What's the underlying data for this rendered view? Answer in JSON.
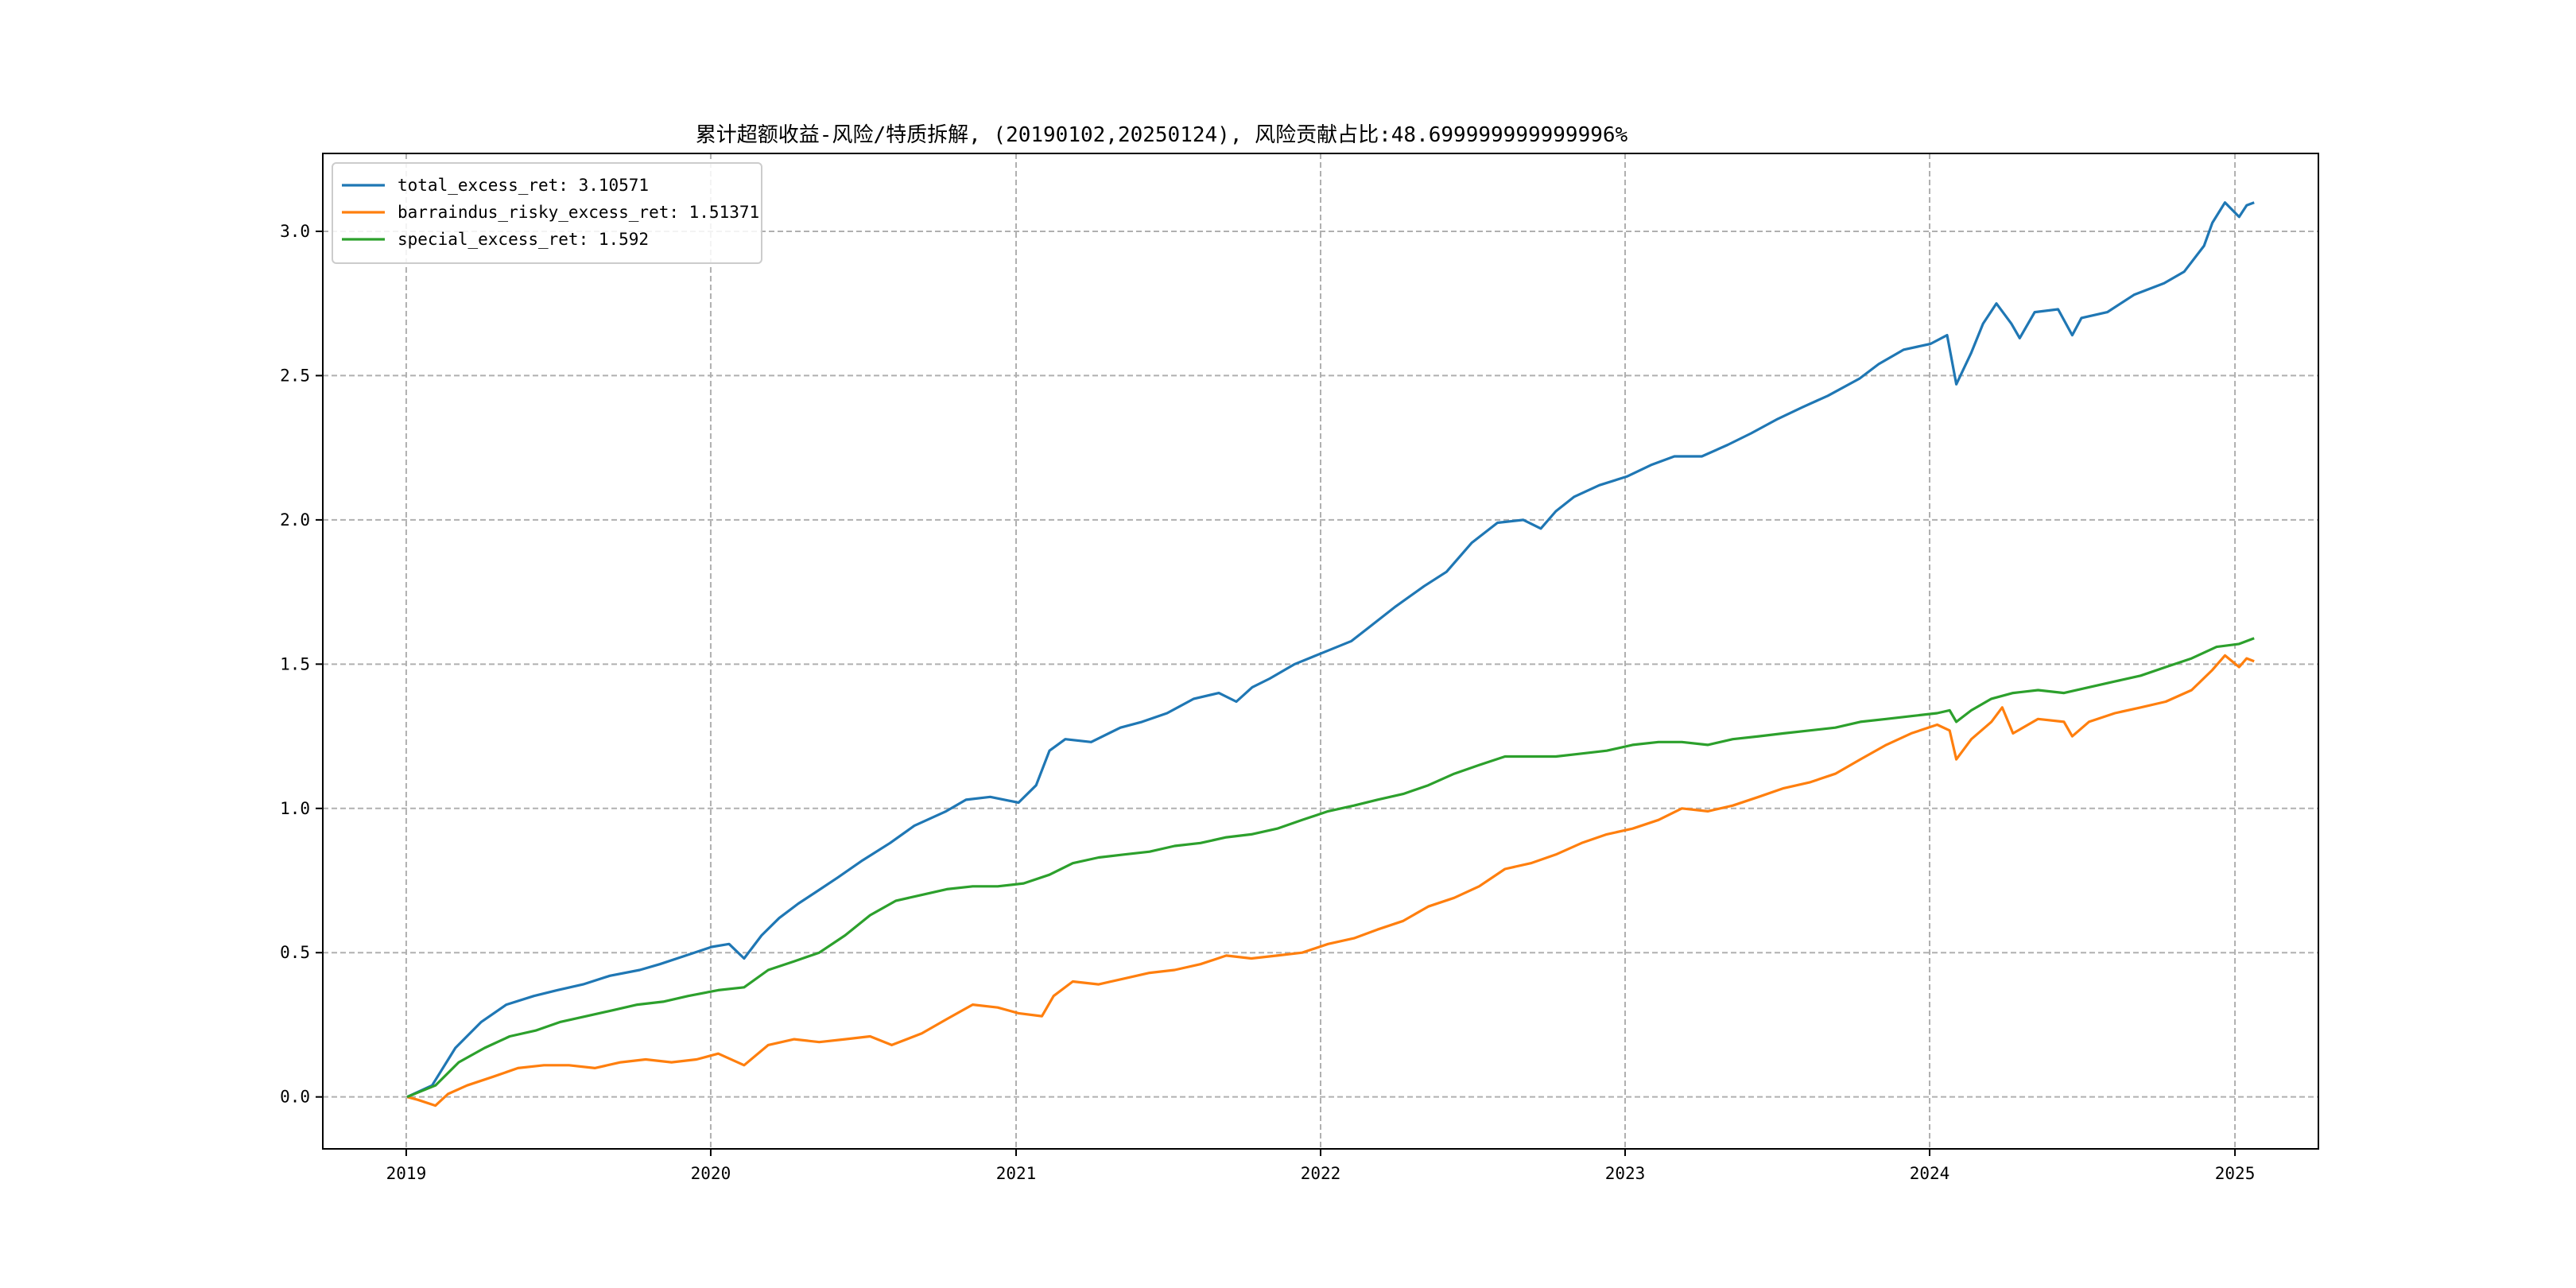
{
  "chart_data": {
    "type": "line",
    "title": "累计超额收益-风险/特质拆解, (20190102,20250124), 风险贡献占比:48.699999999999996%",
    "xlabel": "",
    "ylabel": "",
    "x_ticks": [
      "2019",
      "2020",
      "2021",
      "2022",
      "2023",
      "2024",
      "2025"
    ],
    "y_ticks": [
      "0.0",
      "0.5",
      "1.0",
      "1.5",
      "2.0",
      "2.5",
      "3.0"
    ],
    "xlim": [
      "2018-09-23",
      "2025-04-11"
    ],
    "ylim": [
      -0.18,
      3.27
    ],
    "grid": true,
    "legend_position": "top-left",
    "series": [
      {
        "name": "total_excess_ret",
        "legend": "total_excess_ret: 3.10571",
        "color": "#1f77b4",
        "points": [
          [
            "2019-01-02",
            0.0
          ],
          [
            "2019-02-01",
            0.04
          ],
          [
            "2019-03-01",
            0.17
          ],
          [
            "2019-04-01",
            0.26
          ],
          [
            "2019-05-01",
            0.32
          ],
          [
            "2019-06-03",
            0.35
          ],
          [
            "2019-07-01",
            0.37
          ],
          [
            "2019-08-01",
            0.39
          ],
          [
            "2019-09-02",
            0.42
          ],
          [
            "2019-10-08",
            0.44
          ],
          [
            "2019-11-01",
            0.46
          ],
          [
            "2019-12-02",
            0.49
          ],
          [
            "2020-01-02",
            0.52
          ],
          [
            "2020-01-23",
            0.53
          ],
          [
            "2020-02-10",
            0.48
          ],
          [
            "2020-03-02",
            0.56
          ],
          [
            "2020-03-23",
            0.62
          ],
          [
            "2020-04-15",
            0.67
          ],
          [
            "2020-05-06",
            0.71
          ],
          [
            "2020-06-01",
            0.76
          ],
          [
            "2020-07-01",
            0.82
          ],
          [
            "2020-08-03",
            0.88
          ],
          [
            "2020-09-01",
            0.94
          ],
          [
            "2020-10-09",
            0.99
          ],
          [
            "2020-11-02",
            1.03
          ],
          [
            "2020-12-01",
            1.04
          ],
          [
            "2021-01-04",
            1.02
          ],
          [
            "2021-01-25",
            1.08
          ],
          [
            "2021-02-10",
            1.2
          ],
          [
            "2021-03-01",
            1.24
          ],
          [
            "2021-04-01",
            1.23
          ],
          [
            "2021-05-06",
            1.28
          ],
          [
            "2021-06-01",
            1.3
          ],
          [
            "2021-07-01",
            1.33
          ],
          [
            "2021-08-02",
            1.38
          ],
          [
            "2021-09-01",
            1.4
          ],
          [
            "2021-09-22",
            1.37
          ],
          [
            "2021-10-11",
            1.42
          ],
          [
            "2021-11-01",
            1.45
          ],
          [
            "2021-12-01",
            1.5
          ],
          [
            "2022-01-04",
            1.54
          ],
          [
            "2022-02-07",
            1.58
          ],
          [
            "2022-03-01",
            1.63
          ],
          [
            "2022-04-01",
            1.7
          ],
          [
            "2022-05-05",
            1.77
          ],
          [
            "2022-06-01",
            1.82
          ],
          [
            "2022-07-01",
            1.92
          ],
          [
            "2022-08-01",
            1.99
          ],
          [
            "2022-09-01",
            2.0
          ],
          [
            "2022-09-22",
            1.97
          ],
          [
            "2022-10-10",
            2.03
          ],
          [
            "2022-11-01",
            2.08
          ],
          [
            "2022-12-01",
            2.12
          ],
          [
            "2023-01-03",
            2.15
          ],
          [
            "2023-02-01",
            2.19
          ],
          [
            "2023-03-01",
            2.22
          ],
          [
            "2023-04-03",
            2.22
          ],
          [
            "2023-05-04",
            2.26
          ],
          [
            "2023-06-01",
            2.3
          ],
          [
            "2023-07-03",
            2.35
          ],
          [
            "2023-08-01",
            2.39
          ],
          [
            "2023-09-01",
            2.43
          ],
          [
            "2023-10-09",
            2.49
          ],
          [
            "2023-11-01",
            2.54
          ],
          [
            "2023-12-01",
            2.59
          ],
          [
            "2024-01-02",
            2.61
          ],
          [
            "2024-01-22",
            2.64
          ],
          [
            "2024-02-02",
            2.47
          ],
          [
            "2024-02-20",
            2.58
          ],
          [
            "2024-03-05",
            2.68
          ],
          [
            "2024-03-21",
            2.75
          ],
          [
            "2024-04-08",
            2.68
          ],
          [
            "2024-04-18",
            2.63
          ],
          [
            "2024-05-06",
            2.72
          ],
          [
            "2024-06-03",
            2.73
          ],
          [
            "2024-06-20",
            2.64
          ],
          [
            "2024-07-01",
            2.7
          ],
          [
            "2024-08-01",
            2.72
          ],
          [
            "2024-09-02",
            2.78
          ],
          [
            "2024-10-08",
            2.82
          ],
          [
            "2024-11-01",
            2.86
          ],
          [
            "2024-11-25",
            2.95
          ],
          [
            "2024-12-05",
            3.03
          ],
          [
            "2024-12-20",
            3.1
          ],
          [
            "2025-01-06",
            3.05
          ],
          [
            "2025-01-15",
            3.09
          ],
          [
            "2025-01-24",
            3.1
          ]
        ]
      },
      {
        "name": "barraindus_risky_excess_ret",
        "legend": "barraindus_risky_excess_ret: 1.51371",
        "color": "#ff7f0e",
        "points": [
          [
            "2019-01-02",
            0.0
          ],
          [
            "2019-01-15",
            -0.01
          ],
          [
            "2019-02-05",
            -0.03
          ],
          [
            "2019-02-20",
            0.01
          ],
          [
            "2019-03-15",
            0.04
          ],
          [
            "2019-04-15",
            0.07
          ],
          [
            "2019-05-15",
            0.1
          ],
          [
            "2019-06-15",
            0.11
          ],
          [
            "2019-07-15",
            0.11
          ],
          [
            "2019-08-15",
            0.1
          ],
          [
            "2019-09-15",
            0.12
          ],
          [
            "2019-10-15",
            0.13
          ],
          [
            "2019-11-15",
            0.12
          ],
          [
            "2019-12-15",
            0.13
          ],
          [
            "2020-01-10",
            0.15
          ],
          [
            "2020-02-10",
            0.11
          ],
          [
            "2020-03-10",
            0.18
          ],
          [
            "2020-04-10",
            0.2
          ],
          [
            "2020-05-10",
            0.19
          ],
          [
            "2020-06-10",
            0.2
          ],
          [
            "2020-07-10",
            0.21
          ],
          [
            "2020-08-05",
            0.18
          ],
          [
            "2020-09-10",
            0.22
          ],
          [
            "2020-10-10",
            0.27
          ],
          [
            "2020-11-10",
            0.32
          ],
          [
            "2020-12-10",
            0.31
          ],
          [
            "2021-01-04",
            0.29
          ],
          [
            "2021-02-01",
            0.28
          ],
          [
            "2021-02-15",
            0.35
          ],
          [
            "2021-03-10",
            0.4
          ],
          [
            "2021-04-10",
            0.39
          ],
          [
            "2021-05-10",
            0.41
          ],
          [
            "2021-06-10",
            0.43
          ],
          [
            "2021-07-10",
            0.44
          ],
          [
            "2021-08-10",
            0.46
          ],
          [
            "2021-09-10",
            0.49
          ],
          [
            "2021-10-10",
            0.48
          ],
          [
            "2021-11-10",
            0.49
          ],
          [
            "2021-12-10",
            0.5
          ],
          [
            "2022-01-10",
            0.53
          ],
          [
            "2022-02-10",
            0.55
          ],
          [
            "2022-03-10",
            0.58
          ],
          [
            "2022-04-10",
            0.61
          ],
          [
            "2022-05-10",
            0.66
          ],
          [
            "2022-06-10",
            0.69
          ],
          [
            "2022-07-10",
            0.73
          ],
          [
            "2022-08-10",
            0.79
          ],
          [
            "2022-09-10",
            0.81
          ],
          [
            "2022-10-10",
            0.84
          ],
          [
            "2022-11-10",
            0.88
          ],
          [
            "2022-12-10",
            0.91
          ],
          [
            "2023-01-10",
            0.93
          ],
          [
            "2023-02-10",
            0.96
          ],
          [
            "2023-03-10",
            1.0
          ],
          [
            "2023-04-10",
            0.99
          ],
          [
            "2023-05-10",
            1.01
          ],
          [
            "2023-06-10",
            1.04
          ],
          [
            "2023-07-10",
            1.07
          ],
          [
            "2023-08-10",
            1.09
          ],
          [
            "2023-09-10",
            1.12
          ],
          [
            "2023-10-10",
            1.17
          ],
          [
            "2023-11-10",
            1.22
          ],
          [
            "2023-12-10",
            1.26
          ],
          [
            "2024-01-10",
            1.29
          ],
          [
            "2024-01-25",
            1.27
          ],
          [
            "2024-02-02",
            1.17
          ],
          [
            "2024-02-20",
            1.24
          ],
          [
            "2024-03-15",
            1.3
          ],
          [
            "2024-03-28",
            1.35
          ],
          [
            "2024-04-10",
            1.26
          ],
          [
            "2024-05-10",
            1.31
          ],
          [
            "2024-06-10",
            1.3
          ],
          [
            "2024-06-20",
            1.25
          ],
          [
            "2024-07-10",
            1.3
          ],
          [
            "2024-08-10",
            1.33
          ],
          [
            "2024-09-10",
            1.35
          ],
          [
            "2024-10-10",
            1.37
          ],
          [
            "2024-11-10",
            1.41
          ],
          [
            "2024-12-05",
            1.48
          ],
          [
            "2024-12-20",
            1.53
          ],
          [
            "2025-01-06",
            1.49
          ],
          [
            "2025-01-15",
            1.52
          ],
          [
            "2025-01-24",
            1.51
          ]
        ]
      },
      {
        "name": "special_excess_ret",
        "legend": "special_excess_ret: 1.592",
        "color": "#2ca02c",
        "points": [
          [
            "2019-01-02",
            0.0
          ],
          [
            "2019-02-05",
            0.04
          ],
          [
            "2019-03-05",
            0.12
          ],
          [
            "2019-04-05",
            0.17
          ],
          [
            "2019-05-05",
            0.21
          ],
          [
            "2019-06-05",
            0.23
          ],
          [
            "2019-07-05",
            0.26
          ],
          [
            "2019-08-05",
            0.28
          ],
          [
            "2019-09-05",
            0.3
          ],
          [
            "2019-10-05",
            0.32
          ],
          [
            "2019-11-05",
            0.33
          ],
          [
            "2019-12-05",
            0.35
          ],
          [
            "2020-01-10",
            0.37
          ],
          [
            "2020-02-10",
            0.38
          ],
          [
            "2020-03-10",
            0.44
          ],
          [
            "2020-04-10",
            0.47
          ],
          [
            "2020-05-10",
            0.5
          ],
          [
            "2020-06-10",
            0.56
          ],
          [
            "2020-07-10",
            0.63
          ],
          [
            "2020-08-10",
            0.68
          ],
          [
            "2020-09-10",
            0.7
          ],
          [
            "2020-10-10",
            0.72
          ],
          [
            "2020-11-10",
            0.73
          ],
          [
            "2020-12-10",
            0.73
          ],
          [
            "2021-01-10",
            0.74
          ],
          [
            "2021-02-10",
            0.77
          ],
          [
            "2021-03-10",
            0.81
          ],
          [
            "2021-04-10",
            0.83
          ],
          [
            "2021-05-10",
            0.84
          ],
          [
            "2021-06-10",
            0.85
          ],
          [
            "2021-07-10",
            0.87
          ],
          [
            "2021-08-10",
            0.88
          ],
          [
            "2021-09-10",
            0.9
          ],
          [
            "2021-10-10",
            0.91
          ],
          [
            "2021-11-10",
            0.93
          ],
          [
            "2021-12-10",
            0.96
          ],
          [
            "2022-01-10",
            0.99
          ],
          [
            "2022-02-10",
            1.01
          ],
          [
            "2022-03-10",
            1.03
          ],
          [
            "2022-04-10",
            1.05
          ],
          [
            "2022-05-10",
            1.08
          ],
          [
            "2022-06-10",
            1.12
          ],
          [
            "2022-07-10",
            1.15
          ],
          [
            "2022-08-10",
            1.18
          ],
          [
            "2022-09-10",
            1.18
          ],
          [
            "2022-10-10",
            1.18
          ],
          [
            "2022-11-10",
            1.19
          ],
          [
            "2022-12-10",
            1.2
          ],
          [
            "2023-01-10",
            1.22
          ],
          [
            "2023-02-10",
            1.23
          ],
          [
            "2023-03-10",
            1.23
          ],
          [
            "2023-04-10",
            1.22
          ],
          [
            "2023-05-10",
            1.24
          ],
          [
            "2023-06-10",
            1.25
          ],
          [
            "2023-07-10",
            1.26
          ],
          [
            "2023-08-10",
            1.27
          ],
          [
            "2023-09-10",
            1.28
          ],
          [
            "2023-10-10",
            1.3
          ],
          [
            "2023-11-10",
            1.31
          ],
          [
            "2023-12-10",
            1.32
          ],
          [
            "2024-01-10",
            1.33
          ],
          [
            "2024-01-25",
            1.34
          ],
          [
            "2024-02-02",
            1.3
          ],
          [
            "2024-02-20",
            1.34
          ],
          [
            "2024-03-15",
            1.38
          ],
          [
            "2024-04-10",
            1.4
          ],
          [
            "2024-05-10",
            1.41
          ],
          [
            "2024-06-10",
            1.4
          ],
          [
            "2024-07-10",
            1.42
          ],
          [
            "2024-08-10",
            1.44
          ],
          [
            "2024-09-10",
            1.46
          ],
          [
            "2024-10-10",
            1.49
          ],
          [
            "2024-11-10",
            1.52
          ],
          [
            "2024-12-10",
            1.56
          ],
          [
            "2025-01-06",
            1.57
          ],
          [
            "2025-01-24",
            1.59
          ]
        ]
      }
    ]
  }
}
